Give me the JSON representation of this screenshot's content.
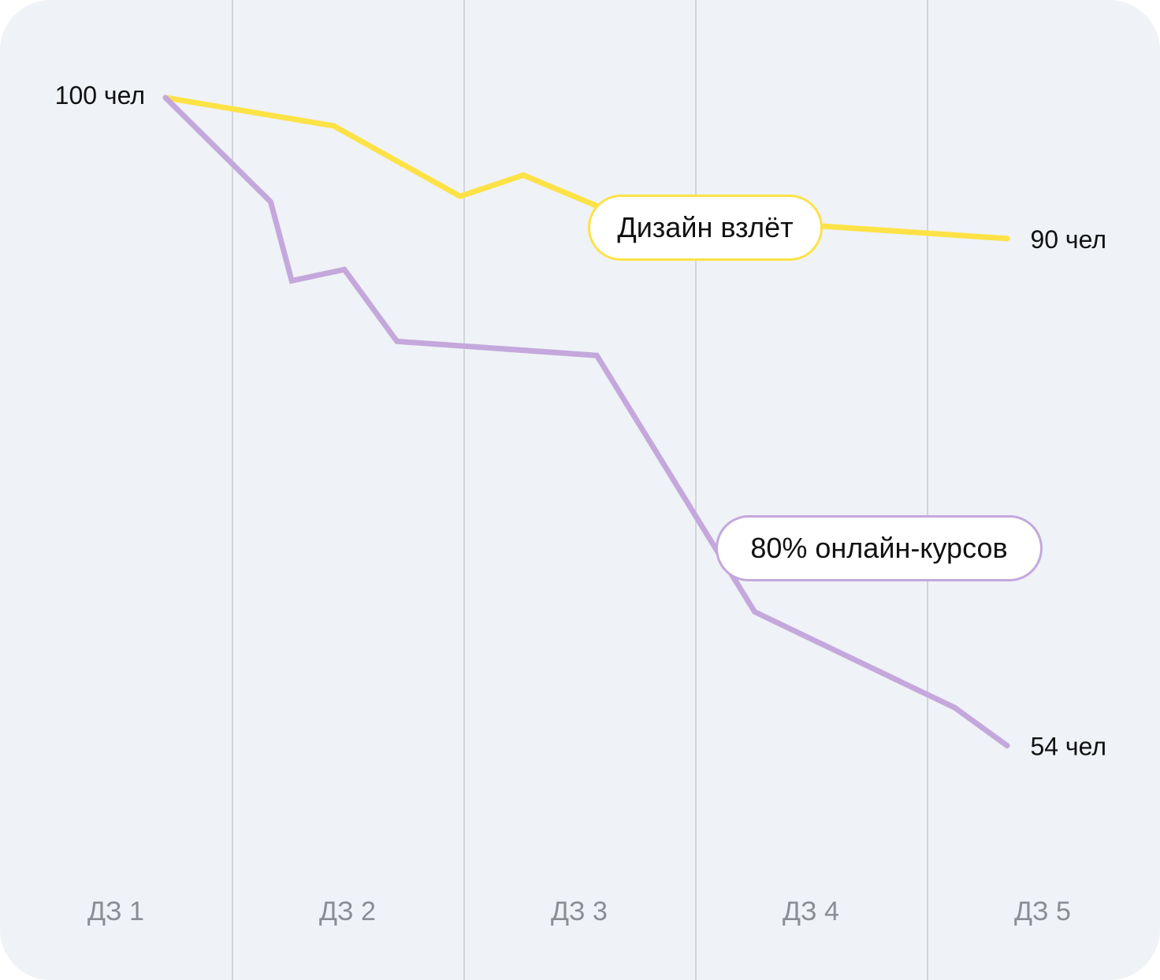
{
  "chart_data": {
    "type": "line",
    "categories": [
      "ДЗ 1",
      "ДЗ 2",
      "ДЗ 3",
      "ДЗ 4",
      "ДЗ 5"
    ],
    "unit": "чел",
    "series": [
      {
        "name": "Дизайн взлёт",
        "color": "#fde246",
        "x": [
          1.0,
          1.8,
          2.4,
          2.7,
          3.1,
          4.0,
          5.0
        ],
        "values": [
          100,
          98,
          93,
          94.5,
          92,
          91,
          90
        ],
        "start_label": "100 чел",
        "end_label": "90 чел"
      },
      {
        "name": "80% онлайн-курсов",
        "color": "#c4a8dc",
        "x": [
          1.0,
          1.5,
          1.6,
          1.85,
          2.1,
          3.05,
          3.8,
          4.75,
          5.0
        ],
        "values": [
          100,
          92.6,
          87,
          87.8,
          82.7,
          81.7,
          63.5,
          56.7,
          54
        ],
        "start_label": "100 чел",
        "end_label": "54 чел"
      }
    ],
    "ylim": [
      50,
      100
    ],
    "grid": "vertical"
  }
}
